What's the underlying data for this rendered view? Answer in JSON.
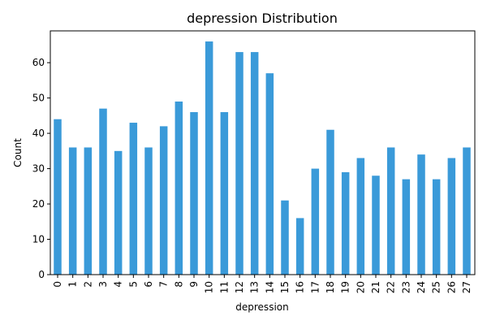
{
  "chart_data": {
    "type": "bar",
    "title": "depression Distribution",
    "xlabel": "depression",
    "ylabel": "Count",
    "categories": [
      "0",
      "1",
      "2",
      "3",
      "4",
      "5",
      "6",
      "7",
      "8",
      "9",
      "10",
      "11",
      "12",
      "13",
      "14",
      "15",
      "16",
      "17",
      "18",
      "19",
      "20",
      "21",
      "22",
      "23",
      "24",
      "25",
      "26",
      "27"
    ],
    "values": [
      44,
      36,
      36,
      47,
      35,
      43,
      36,
      42,
      49,
      46,
      66,
      46,
      63,
      63,
      57,
      21,
      16,
      30,
      41,
      29,
      33,
      28,
      36,
      27,
      34,
      27,
      33,
      36
    ],
    "ylim": [
      0,
      69
    ],
    "yticks": [
      0,
      10,
      20,
      30,
      40,
      50,
      60
    ],
    "grid": false,
    "bar_color": "#3a9ad9"
  }
}
